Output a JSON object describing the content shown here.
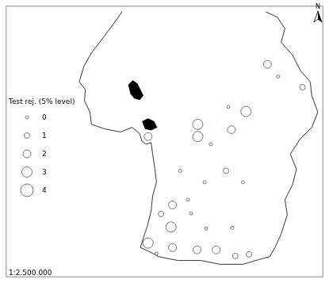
{
  "chart_data": {
    "type": "bubble",
    "legend_title": "Test rej. (5% level)",
    "size_levels": [
      0,
      1,
      2,
      3,
      4
    ],
    "scale_text": "1:2.500.000",
    "north_label": "N",
    "x": [
      342,
      356,
      388,
      291,
      314,
      251,
      251,
      295,
      268,
      186,
      228,
      288,
      260,
      310,
      238,
      218,
      203,
      242,
      216,
      262,
      296,
      186,
      197,
      218,
      250,
      275,
      300,
      318
    ],
    "y": [
      77,
      93,
      107,
      133,
      139,
      156,
      172,
      163,
      182,
      172,
      217,
      217,
      232,
      232,
      255,
      262,
      274,
      273,
      291,
      293,
      292,
      312,
      326,
      318,
      321,
      321,
      329,
      327
    ],
    "values": [
      2,
      0,
      1,
      0,
      3,
      3,
      3,
      2,
      0,
      2,
      0,
      1,
      0,
      0,
      0,
      2,
      1,
      0,
      3,
      0,
      0,
      3,
      0,
      2,
      2,
      2,
      1,
      1
    ],
    "xlim": [
      0,
      415
    ],
    "ylim": [
      357,
      0
    ],
    "tick_labels": false,
    "grid": false,
    "color": "#555555"
  }
}
